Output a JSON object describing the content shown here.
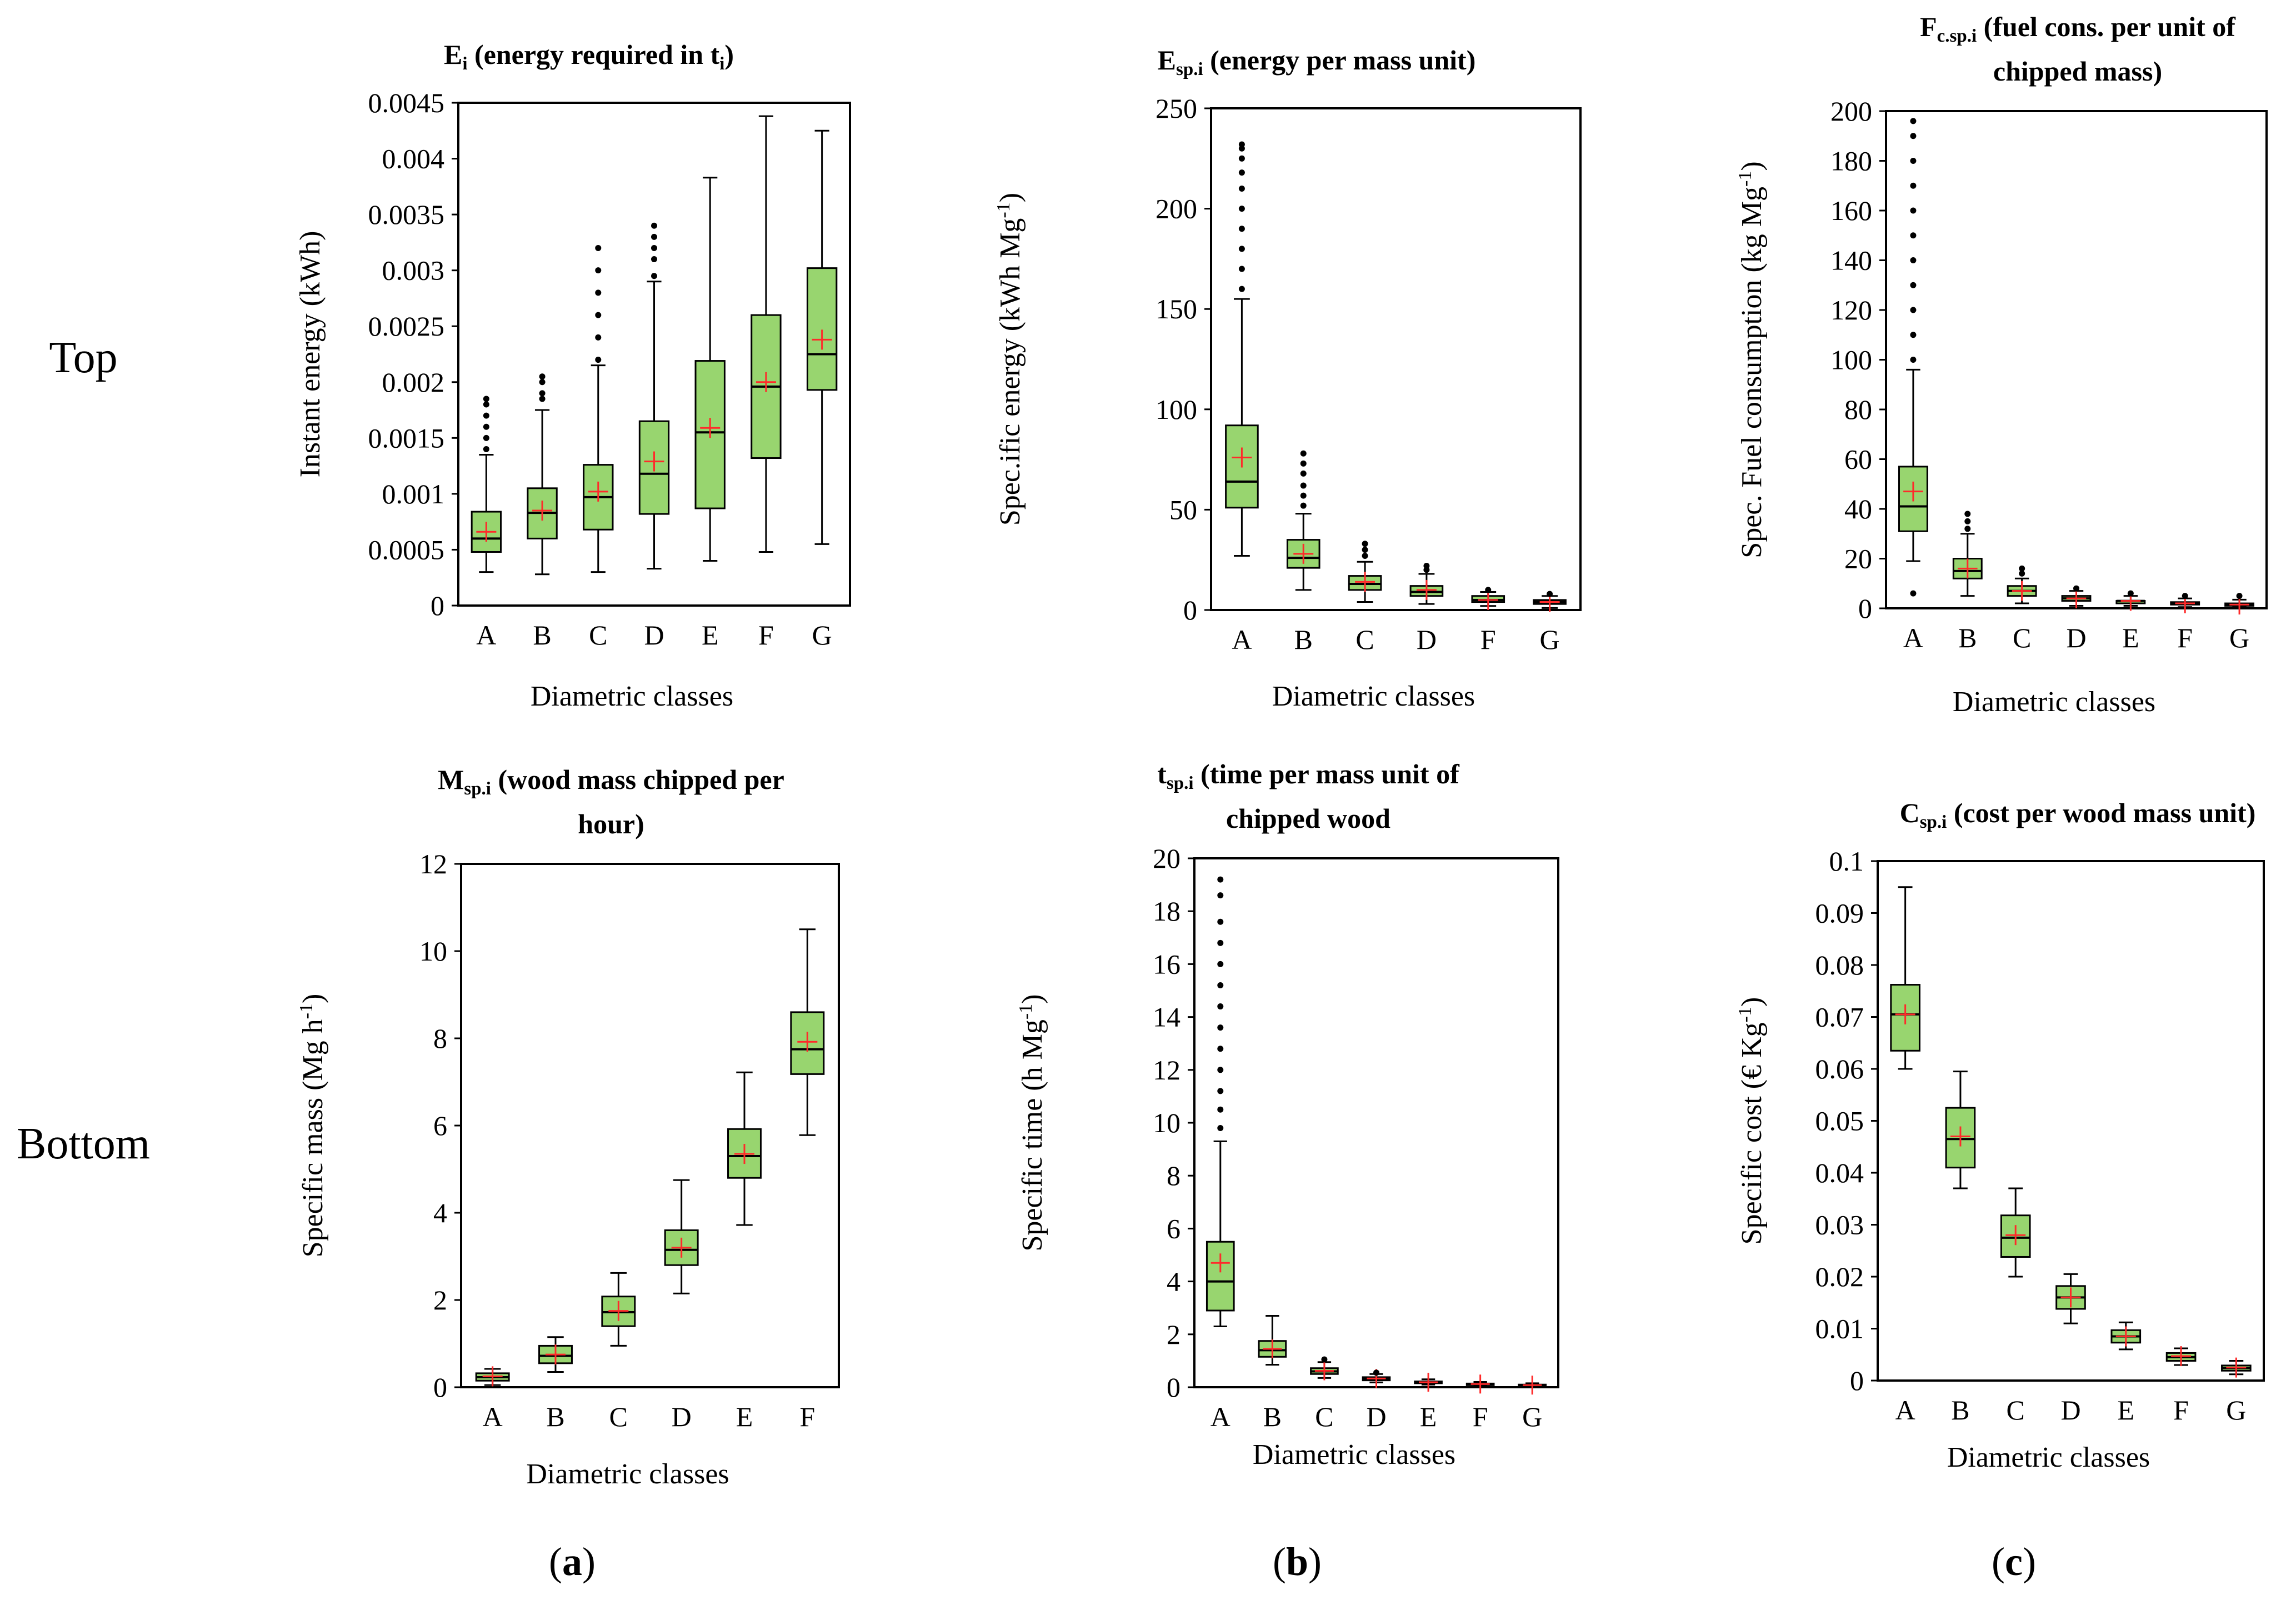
{
  "figure": {
    "row_labels": [
      "Top",
      "Bottom"
    ],
    "panel_labels": [
      "(a)",
      "(b)",
      "(c)"
    ],
    "panel_label_letters": [
      "a",
      "b",
      "c"
    ],
    "colors": {
      "box_fill": "#98d56f",
      "mean_marker": "#ff2a2a",
      "outlier": "#000000"
    }
  },
  "chart_data": [
    {
      "type": "box",
      "title_main": "E",
      "title_sub": "i",
      "title_line1_rest": " (energy required in t",
      "title_line1_sub2": "i",
      "title_line1_end": ")",
      "title_line2": "",
      "ylabel": "Instant energy (kWh)",
      "xlabel": "Diametric classes",
      "ylim": [
        0,
        0.0045
      ],
      "yticks": [
        "0",
        "0.0005",
        "0.001",
        "0.0015",
        "0.002",
        "0.0025",
        "0.003",
        "0.0035",
        "0.004",
        "0.0045"
      ],
      "ytick_values": [
        0,
        0.0005,
        0.001,
        0.0015,
        0.002,
        0.0025,
        0.003,
        0.0035,
        0.004,
        0.0045
      ],
      "categories": [
        "A",
        "B",
        "C",
        "D",
        "E",
        "F",
        "G"
      ],
      "boxes": [
        {
          "min": 0.0003,
          "q1": 0.00048,
          "median": 0.0006,
          "q3": 0.00084,
          "max": 0.00135,
          "mean": 0.00066,
          "outliers": [
            0.0014,
            0.0015,
            0.0016,
            0.0017,
            0.0018,
            0.00185
          ]
        },
        {
          "min": 0.00028,
          "q1": 0.0006,
          "median": 0.00083,
          "q3": 0.00105,
          "max": 0.00175,
          "mean": 0.00085,
          "outliers": [
            0.00185,
            0.0019,
            0.002,
            0.00205
          ]
        },
        {
          "min": 0.0003,
          "q1": 0.00068,
          "median": 0.00097,
          "q3": 0.00126,
          "max": 0.00215,
          "mean": 0.00102,
          "outliers": [
            0.0022,
            0.0024,
            0.0026,
            0.0028,
            0.003,
            0.0032
          ]
        },
        {
          "min": 0.00033,
          "q1": 0.00082,
          "median": 0.00118,
          "q3": 0.00165,
          "max": 0.0029,
          "mean": 0.00129,
          "outliers": [
            0.00295,
            0.0031,
            0.0032,
            0.0033,
            0.0034
          ]
        },
        {
          "min": 0.0004,
          "q1": 0.00087,
          "median": 0.00155,
          "q3": 0.00219,
          "max": 0.00383,
          "mean": 0.00159,
          "outliers": []
        },
        {
          "min": 0.00048,
          "q1": 0.00132,
          "median": 0.00196,
          "q3": 0.0026,
          "max": 0.00438,
          "mean": 0.002,
          "outliers": []
        },
        {
          "min": 0.00055,
          "q1": 0.00193,
          "median": 0.00225,
          "q3": 0.00302,
          "max": 0.00425,
          "mean": 0.00238,
          "outliers": []
        }
      ]
    },
    {
      "type": "box",
      "title_main": "E",
      "title_sub": "sp.i",
      "title_line1_rest": " (energy per  mass unit)",
      "title_line1_sub2": "",
      "title_line1_end": "",
      "title_line2": "",
      "ylabel": "Spec.ific energy (kWh Mg",
      "ylabel_sup": "-1",
      "ylabel_end": ")",
      "xlabel": "Diametric classes",
      "ylim": [
        0,
        250
      ],
      "yticks": [
        "0",
        "50",
        "100",
        "150",
        "200",
        "250"
      ],
      "ytick_values": [
        0,
        50,
        100,
        150,
        200,
        250
      ],
      "categories": [
        "A",
        "B",
        "C",
        "D",
        "F",
        "G"
      ],
      "boxes": [
        {
          "min": 27,
          "q1": 51,
          "median": 64,
          "q3": 92,
          "max": 155,
          "mean": 76,
          "outliers": [
            160,
            170,
            180,
            190,
            200,
            210,
            218,
            225,
            230,
            232
          ]
        },
        {
          "min": 10,
          "q1": 21,
          "median": 26,
          "q3": 35,
          "max": 48,
          "mean": 28,
          "outliers": [
            52,
            57,
            62,
            68,
            73,
            78
          ]
        },
        {
          "min": 4,
          "q1": 10,
          "median": 13,
          "q3": 17,
          "max": 24,
          "mean": 14,
          "outliers": [
            27,
            30,
            33
          ]
        },
        {
          "min": 3,
          "q1": 7,
          "median": 9,
          "q3": 12,
          "max": 18,
          "mean": 10,
          "outliers": [
            20,
            22
          ]
        },
        {
          "min": 2,
          "q1": 4,
          "median": 5,
          "q3": 7,
          "max": 9,
          "mean": 5,
          "outliers": [
            10
          ]
        },
        {
          "min": 1,
          "q1": 3,
          "median": 4,
          "q3": 5,
          "max": 7,
          "mean": 4,
          "outliers": [
            8
          ]
        }
      ]
    },
    {
      "type": "box",
      "title_main": "F",
      "title_sub": "c.sp.i",
      "title_line1_rest": " (fuel cons. per unit of",
      "title_line1_sub2": "",
      "title_line1_end": "",
      "title_line2": "chipped mass)",
      "ylabel": "Spec. Fuel consumption (kg Mg",
      "ylabel_sup": "-1",
      "ylabel_end": ")",
      "xlabel": "Diametric classes",
      "ylim": [
        0,
        200
      ],
      "yticks": [
        "0",
        "20",
        "40",
        "60",
        "80",
        "100",
        "120",
        "140",
        "160",
        "180",
        "200"
      ],
      "ytick_values": [
        0,
        20,
        40,
        60,
        80,
        100,
        120,
        140,
        160,
        180,
        200
      ],
      "categories": [
        "A",
        "B",
        "C",
        "D",
        "E",
        "F",
        "G"
      ],
      "boxes": [
        {
          "min": 19,
          "q1": 31,
          "median": 41,
          "q3": 57,
          "max": 96,
          "mean": 47,
          "outliers": [
            6,
            100,
            110,
            120,
            130,
            140,
            150,
            160,
            170,
            180,
            190,
            196
          ]
        },
        {
          "min": 5,
          "q1": 12,
          "median": 15,
          "q3": 20,
          "max": 30,
          "mean": 16,
          "outliers": [
            32,
            35,
            38
          ]
        },
        {
          "min": 2,
          "q1": 5,
          "median": 7,
          "q3": 9,
          "max": 12,
          "mean": 7,
          "outliers": [
            14,
            16
          ]
        },
        {
          "min": 1,
          "q1": 3,
          "median": 4,
          "q3": 5,
          "max": 7,
          "mean": 4,
          "outliers": [
            8
          ]
        },
        {
          "min": 1,
          "q1": 2,
          "median": 3,
          "q3": 3,
          "max": 5,
          "mean": 3,
          "outliers": [
            6
          ]
        },
        {
          "min": 0.5,
          "q1": 1.5,
          "median": 2,
          "q3": 2.5,
          "max": 4,
          "mean": 2,
          "outliers": [
            5
          ]
        },
        {
          "min": 0.3,
          "q1": 1,
          "median": 1.5,
          "q3": 2,
          "max": 3.5,
          "mean": 1.5,
          "outliers": [
            5
          ]
        }
      ]
    },
    {
      "type": "box",
      "title_main": "M",
      "title_sub": "sp.i",
      "title_line1_rest": " (wood mass chipped per",
      "title_line1_sub2": "",
      "title_line1_end": "",
      "title_line2": "hour)",
      "ylabel": "Specific mass (Mg h",
      "ylabel_sup": "-1",
      "ylabel_end": ")",
      "xlabel": "Diametric classes",
      "ylim": [
        0,
        12
      ],
      "yticks": [
        "0",
        "2",
        "4",
        "6",
        "8",
        "10",
        "12"
      ],
      "ytick_values": [
        0,
        2,
        4,
        6,
        8,
        10,
        12
      ],
      "categories": [
        "A",
        "B",
        "C",
        "D",
        "E",
        "F"
      ],
      "boxes": [
        {
          "min": 0.05,
          "q1": 0.15,
          "median": 0.23,
          "q3": 0.32,
          "max": 0.42,
          "mean": 0.25,
          "outliers": []
        },
        {
          "min": 0.35,
          "q1": 0.55,
          "median": 0.72,
          "q3": 0.95,
          "max": 1.15,
          "mean": 0.75,
          "outliers": []
        },
        {
          "min": 0.95,
          "q1": 1.4,
          "median": 1.72,
          "q3": 2.08,
          "max": 2.62,
          "mean": 1.75,
          "outliers": []
        },
        {
          "min": 2.15,
          "q1": 2.8,
          "median": 3.15,
          "q3": 3.6,
          "max": 4.75,
          "mean": 3.2,
          "outliers": []
        },
        {
          "min": 3.72,
          "q1": 4.8,
          "median": 5.3,
          "q3": 5.92,
          "max": 7.22,
          "mean": 5.35,
          "outliers": []
        },
        {
          "min": 5.78,
          "q1": 7.18,
          "median": 7.75,
          "q3": 8.6,
          "max": 10.5,
          "mean": 7.92,
          "outliers": []
        }
      ]
    },
    {
      "type": "box",
      "title_main": "t",
      "title_sub": "sp.i",
      "title_line1_rest": " (time per mass unit of",
      "title_line1_sub2": "",
      "title_line1_end": "",
      "title_line2": "chipped wood",
      "ylabel": "Specific time (h Mg",
      "ylabel_sup": "-1",
      "ylabel_end": ")",
      "xlabel": "Diametric classes",
      "ylim": [
        0,
        20
      ],
      "yticks": [
        "0",
        "2",
        "4",
        "6",
        "8",
        "10",
        "12",
        "14",
        "16",
        "18",
        "20"
      ],
      "ytick_values": [
        0,
        2,
        4,
        6,
        8,
        10,
        12,
        14,
        16,
        18,
        20
      ],
      "categories": [
        "A",
        "B",
        "C",
        "D",
        "E",
        "F",
        "G"
      ],
      "boxes": [
        {
          "min": 2.3,
          "q1": 2.9,
          "median": 4,
          "q3": 5.5,
          "max": 9.3,
          "mean": 4.7,
          "outliers": [
            9.8,
            10.5,
            11.2,
            12,
            12.8,
            13.6,
            14.4,
            15.2,
            16,
            16.8,
            17.6,
            18.6,
            19.2
          ]
        },
        {
          "min": 0.85,
          "q1": 1.15,
          "median": 1.4,
          "q3": 1.75,
          "max": 2.7,
          "mean": 1.45,
          "outliers": []
        },
        {
          "min": 0.35,
          "q1": 0.5,
          "median": 0.6,
          "q3": 0.72,
          "max": 0.95,
          "mean": 0.62,
          "outliers": [
            1.05
          ]
        },
        {
          "min": 0.18,
          "q1": 0.26,
          "median": 0.32,
          "q3": 0.38,
          "max": 0.5,
          "mean": 0.33,
          "outliers": [
            0.55
          ]
        },
        {
          "min": 0.1,
          "q1": 0.15,
          "median": 0.18,
          "q3": 0.22,
          "max": 0.3,
          "mean": 0.19,
          "outliers": []
        },
        {
          "min": 0.05,
          "q1": 0.09,
          "median": 0.11,
          "q3": 0.14,
          "max": 0.2,
          "mean": 0.12,
          "outliers": []
        },
        {
          "min": 0.03,
          "q1": 0.06,
          "median": 0.08,
          "q3": 0.1,
          "max": 0.15,
          "mean": 0.08,
          "outliers": []
        }
      ]
    },
    {
      "type": "box",
      "title_main": "C",
      "title_sub": "sp.i",
      "title_line1_rest": " (cost per wood mass unit)",
      "title_line1_sub2": "",
      "title_line1_end": "",
      "title_line2": "",
      "ylabel": "Specific cost (€ Kg",
      "ylabel_sup": "-1",
      "ylabel_end": ")",
      "xlabel": "Diametric classes",
      "ylim": [
        0,
        0.1
      ],
      "yticks": [
        "0",
        "0.01",
        "0.02",
        "0.03",
        "0.04",
        "0.05",
        "0.06",
        "0.07",
        "0.08",
        "0.09",
        "0.1"
      ],
      "ytick_values": [
        0,
        0.01,
        0.02,
        0.03,
        0.04,
        0.05,
        0.06,
        0.07,
        0.08,
        0.09,
        0.1
      ],
      "categories": [
        "A",
        "B",
        "C",
        "D",
        "E",
        "F",
        "G"
      ],
      "boxes": [
        {
          "min": 0.06,
          "q1": 0.0635,
          "median": 0.0705,
          "q3": 0.0762,
          "max": 0.095,
          "mean": 0.0705,
          "outliers": []
        },
        {
          "min": 0.037,
          "q1": 0.041,
          "median": 0.0465,
          "q3": 0.0525,
          "max": 0.0595,
          "mean": 0.047,
          "outliers": []
        },
        {
          "min": 0.02,
          "q1": 0.0238,
          "median": 0.0275,
          "q3": 0.0318,
          "max": 0.037,
          "mean": 0.028,
          "outliers": []
        },
        {
          "min": 0.011,
          "q1": 0.0138,
          "median": 0.016,
          "q3": 0.0182,
          "max": 0.0205,
          "mean": 0.016,
          "outliers": []
        },
        {
          "min": 0.006,
          "q1": 0.0073,
          "median": 0.0085,
          "q3": 0.0097,
          "max": 0.0112,
          "mean": 0.0085,
          "outliers": []
        },
        {
          "min": 0.003,
          "q1": 0.0038,
          "median": 0.0045,
          "q3": 0.0053,
          "max": 0.0062,
          "mean": 0.0047,
          "outliers": []
        },
        {
          "min": 0.0012,
          "q1": 0.0019,
          "median": 0.0024,
          "q3": 0.0029,
          "max": 0.0038,
          "mean": 0.0025,
          "outliers": []
        }
      ]
    }
  ]
}
